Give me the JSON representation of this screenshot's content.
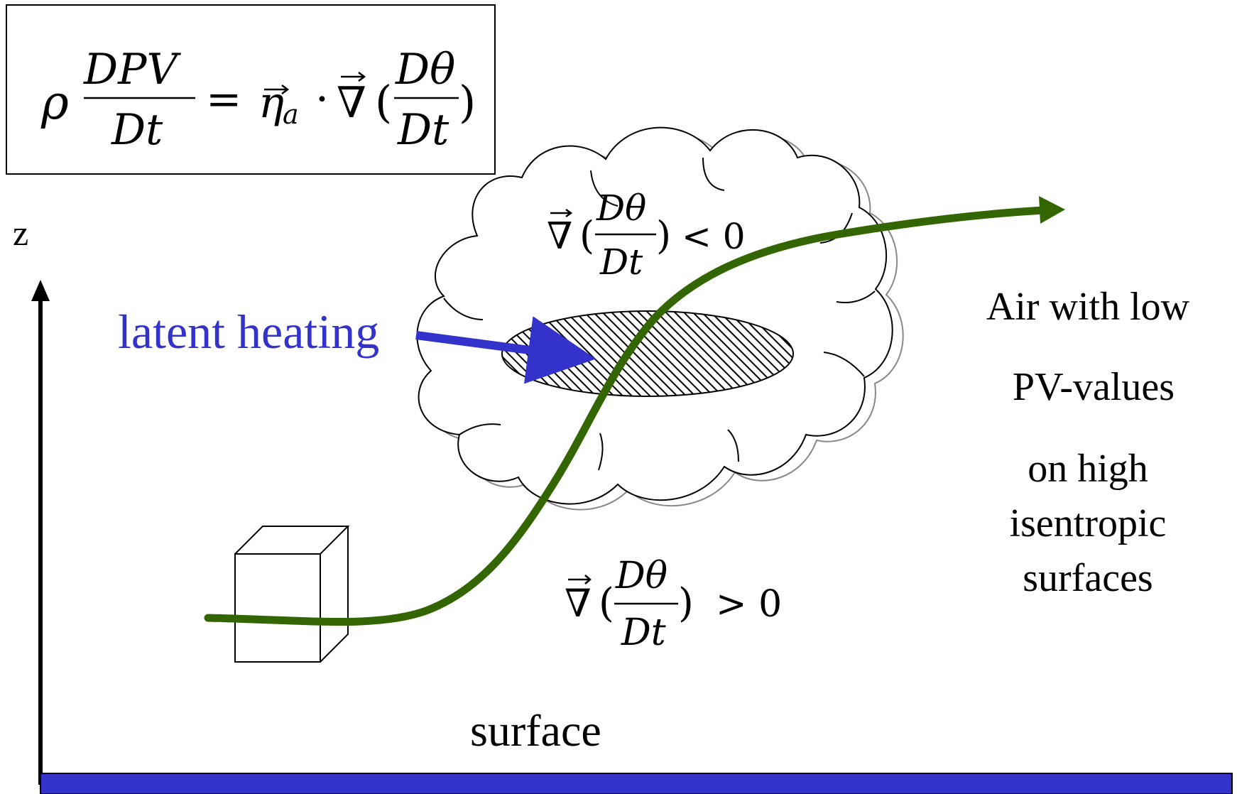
{
  "equation": {
    "lhs_rho": "ρ",
    "lhs_num": "DPV",
    "lhs_den": "Dt",
    "equals": "=",
    "eta": "η",
    "eta_sub": "a",
    "dot": "·",
    "nabla": "∇",
    "paren_open": "(",
    "frac_num": "Dθ",
    "frac_den": "Dt",
    "paren_close": ")"
  },
  "upper_condition": {
    "nabla": "∇",
    "num": "Dθ",
    "den": "Dt",
    "relation": "< 0"
  },
  "lower_condition": {
    "nabla": "∇",
    "num": "Dθ",
    "den": "Dt",
    "relation": "> 0"
  },
  "axis_label": "z",
  "latent_heating_label": "latent heating",
  "right_text": [
    "Air with low",
    "PV-values",
    "on high",
    "isentropic",
    "surfaces"
  ],
  "surface_label": "surface",
  "colors": {
    "trajectory": "#336600",
    "latent_heating": "#3333cc",
    "ground": "#3333cc",
    "outline": "#000000"
  }
}
